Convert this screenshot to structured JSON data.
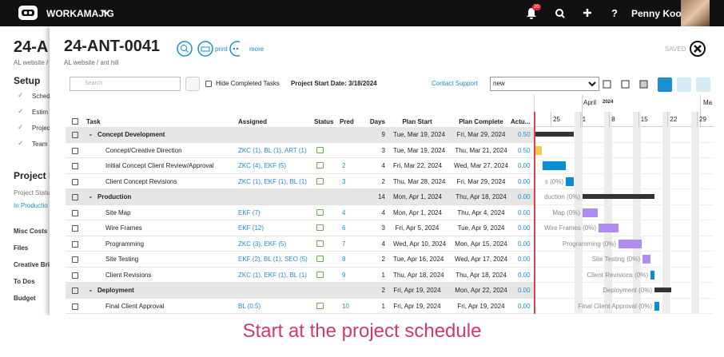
{
  "topbar": {
    "brand": "WORKAMAJIG",
    "notification_count": 20,
    "user": "Penny Kooy"
  },
  "background": {
    "title": "24-A",
    "breadcrumb": "AL website /",
    "setup": "Setup",
    "setup_items": [
      "Sched",
      "Estim",
      "Projec",
      "Team"
    ],
    "project_heading": "Project I",
    "project_status_label": "Project Statu",
    "project_status": "In Productio",
    "nav": [
      "Misc Costs",
      "Files",
      "Creative Brie",
      "To Dos",
      "Budget"
    ]
  },
  "modal": {
    "title": "24-ANT-0041",
    "print": "print",
    "more": "more",
    "breadcrumb": "AL website / ant hill",
    "saved": "SAVED",
    "search_placeholder": "Search",
    "hide_completed": "Hide Completed Tasks",
    "project_start": "Project Start Date: 3/18/2024",
    "contact_support": "Contact Support",
    "view": "new"
  },
  "table": {
    "columns": [
      "Task",
      "Assigned",
      "Status",
      "Pred",
      "Days",
      "Plan Start",
      "Plan Complete",
      "Actu..."
    ],
    "rows": [
      {
        "task": "Concept Development",
        "group": true,
        "days": 9,
        "start": "Tue, Mar 19, 2024",
        "complete": "Fri, Mar 29, 2024",
        "actual": "0.50"
      },
      {
        "task": "Concept/Creative Direction",
        "assigned": "ZKC (1), BL (1), ART (1)",
        "days": 3,
        "start": "Tue, Mar 19, 2024",
        "complete": "Thu, Mar 21, 2024",
        "actual": "0.50"
      },
      {
        "task": "Initial Concept Client Review/Approval",
        "assigned": "ZKC (4), EKF (5)",
        "pred": 2,
        "days": 4,
        "start": "Fri, Mar 22, 2024",
        "complete": "Wed, Mar 27, 2024",
        "actual": "0.00"
      },
      {
        "task": "Client Concept Revisions",
        "assigned": "ZKC (1), EKF (1), BL (1)",
        "pred": 3,
        "days": 2,
        "start": "Thu, Mar 28, 2024",
        "complete": "Fri, Mar 29, 2024",
        "actual": "0.00"
      },
      {
        "task": "Production",
        "group": true,
        "days": 14,
        "start": "Mon, Apr 1, 2024",
        "complete": "Thu, Apr 18, 2024",
        "actual": "0.00"
      },
      {
        "task": "Site Map",
        "assigned": "EKF (7)",
        "pred": 4,
        "days": 4,
        "start": "Mon, Apr 1, 2024",
        "complete": "Thu, Apr 4, 2024",
        "actual": "0.00"
      },
      {
        "task": "Wire Frames",
        "assigned": "EKF (12)",
        "pred": 6,
        "days": 3,
        "start": "Fri, Apr 5, 2024",
        "complete": "Tue, Apr 9, 2024",
        "actual": "0.00"
      },
      {
        "task": "Programming",
        "assigned": "ZKC (3), EKF (5)",
        "pred": 7,
        "days": 4,
        "start": "Wed, Apr 10, 2024",
        "complete": "Mon, Apr 15, 2024",
        "actual": "0.00"
      },
      {
        "task": "Site Testing",
        "assigned": "EKF (2), BL (1), SEO (5)",
        "pred": 8,
        "days": 2,
        "start": "Tue, Apr 16, 2024",
        "complete": "Wed, Apr 17, 2024",
        "actual": "0.00"
      },
      {
        "task": "Client Revisions",
        "assigned": "ZKC (1), EKF (1), BL (1)",
        "pred": 9,
        "days": 1,
        "start": "Thu, Apr 18, 2024",
        "complete": "Thu, Apr 18, 2024",
        "actual": "0.00"
      },
      {
        "task": "Deployment",
        "group": true,
        "days": 2,
        "start": "Fri, Apr 19, 2024",
        "complete": "Mon, Apr 22, 2024",
        "actual": "0.00"
      },
      {
        "task": "Final Client Approval",
        "assigned": "BL (0.5)",
        "pred": 10,
        "days": 1,
        "start": "Fri, Apr 19, 2024",
        "complete": "Fri, Apr 19, 2024",
        "actual": "0.00"
      }
    ]
  },
  "gantt": {
    "month": "April",
    "year": 2024,
    "next_month": "Ma",
    "days": [
      25,
      1,
      8,
      15,
      22,
      29
    ],
    "bar_labels": [
      null,
      null,
      null,
      "s (0%)",
      "duction (0%)",
      "Map (0%)",
      "Wire Frames (0%)",
      "Programming (0%)",
      "Site Testing (0%)",
      "Client Revisions (0%)",
      "Deployment (0%)",
      "Final Client Approval (0%)"
    ]
  },
  "caption": "Start at the project schedule"
}
